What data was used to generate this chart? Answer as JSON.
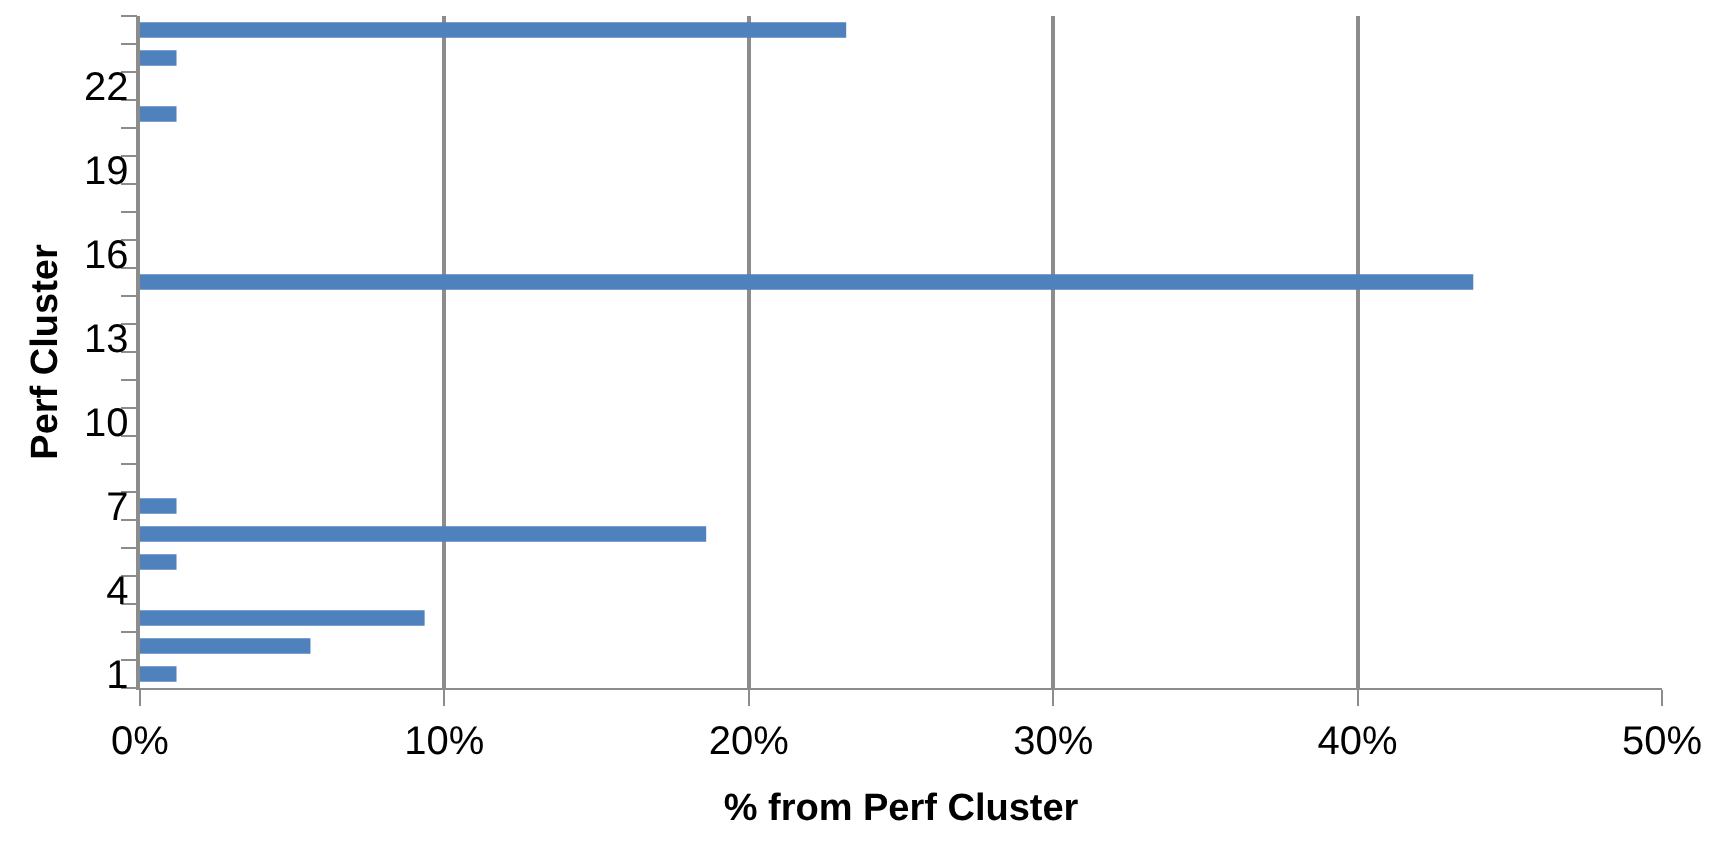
{
  "chart_data": {
    "type": "bar",
    "orientation": "horizontal",
    "xlabel": "% from Perf Cluster",
    "ylabel": "Perf Cluster",
    "categories": [
      null,
      null,
      "22",
      null,
      null,
      "19",
      null,
      null,
      "16",
      null,
      null,
      "13",
      null,
      null,
      "10",
      null,
      null,
      "7",
      null,
      null,
      "4",
      null,
      null,
      "1"
    ],
    "values": [
      23.2,
      1.2,
      0,
      1.2,
      0,
      0,
      0,
      0,
      0,
      43.8,
      0,
      0,
      0,
      0,
      0,
      0,
      0,
      1.2,
      18.6,
      1.2,
      0,
      9.35,
      5.6,
      1.2
    ],
    "color": "#4f81bd",
    "xlim": [
      0,
      50
    ],
    "xticks": [
      {
        "value": 0,
        "label": "0%"
      },
      {
        "value": 10,
        "label": "10%"
      },
      {
        "value": 20,
        "label": "20%"
      },
      {
        "value": 30,
        "label": "30%"
      },
      {
        "value": 40,
        "label": "40%"
      },
      {
        "value": 50,
        "label": "50%"
      }
    ],
    "grid": "x"
  }
}
